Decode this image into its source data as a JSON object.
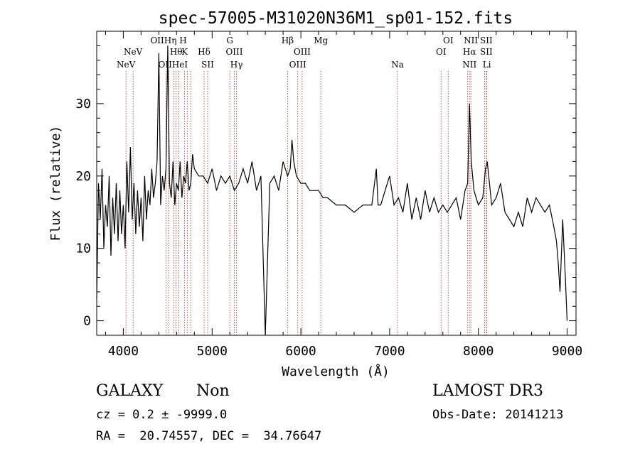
{
  "chart_data": {
    "type": "line",
    "title": "spec-57005-M31020N36M1_sp01-152.fits",
    "xlabel": "Wavelength (Å)",
    "ylabel": "Flux (relative)",
    "xlim": [
      3700,
      9100
    ],
    "ylim": [
      -2,
      40
    ],
    "x_ticks": [
      4000,
      5000,
      6000,
      7000,
      8000,
      9000
    ],
    "y_ticks": [
      0,
      10,
      20,
      30
    ],
    "series": [
      {
        "name": "spectrum",
        "x": [
          3700,
          3720,
          3740,
          3760,
          3780,
          3800,
          3820,
          3840,
          3860,
          3880,
          3900,
          3920,
          3940,
          3960,
          3980,
          4000,
          4020,
          4040,
          4060,
          4080,
          4100,
          4120,
          4140,
          4160,
          4180,
          4200,
          4220,
          4240,
          4260,
          4280,
          4300,
          4320,
          4340,
          4360,
          4380,
          4400,
          4420,
          4440,
          4460,
          4480,
          4500,
          4520,
          4540,
          4560,
          4580,
          4600,
          4620,
          4640,
          4660,
          4680,
          4700,
          4720,
          4740,
          4760,
          4780,
          4800,
          4850,
          4900,
          4950,
          5000,
          5050,
          5100,
          5150,
          5200,
          5250,
          5300,
          5350,
          5400,
          5450,
          5500,
          5550,
          5600,
          5650,
          5700,
          5750,
          5800,
          5850,
          5880,
          5900,
          5920,
          5950,
          6000,
          6050,
          6100,
          6150,
          6200,
          6250,
          6300,
          6400,
          6500,
          6600,
          6700,
          6800,
          6850,
          6870,
          6900,
          6950,
          7000,
          7050,
          7100,
          7150,
          7200,
          7250,
          7300,
          7350,
          7400,
          7450,
          7500,
          7550,
          7600,
          7650,
          7700,
          7750,
          7800,
          7850,
          7880,
          7900,
          7920,
          7950,
          8000,
          8050,
          8080,
          8100,
          8150,
          8200,
          8250,
          8300,
          8350,
          8400,
          8450,
          8500,
          8550,
          8600,
          8650,
          8700,
          8750,
          8800,
          8850,
          8880,
          8900,
          8920,
          8950,
          8980,
          9000
        ],
        "y": [
          3,
          19,
          14,
          21,
          10,
          16,
          13,
          20,
          9,
          17,
          12,
          19,
          11,
          18,
          12,
          16,
          10,
          22,
          15,
          24,
          14,
          19,
          12,
          18,
          13,
          17,
          11,
          20,
          14,
          18,
          16,
          21,
          17,
          19,
          22,
          37,
          16,
          20,
          18,
          21,
          38,
          19,
          17,
          22,
          16,
          19,
          18,
          22,
          17,
          20,
          19,
          22,
          18,
          19,
          23,
          21,
          20,
          20,
          19,
          21,
          18,
          20,
          19,
          20,
          18,
          19,
          21,
          19,
          22,
          18,
          20,
          -2,
          19,
          20,
          18,
          22,
          20,
          21,
          25,
          22,
          20,
          19,
          19,
          18,
          18,
          18,
          17,
          17,
          16,
          16,
          15,
          16,
          16,
          21,
          16,
          16,
          18,
          20,
          16,
          17,
          15,
          19,
          14,
          17,
          14,
          18,
          15,
          17,
          15,
          16,
          15,
          16,
          17,
          14,
          18,
          19,
          30,
          22,
          18,
          16,
          17,
          21,
          22,
          16,
          17,
          19,
          15,
          14,
          13,
          15,
          13,
          17,
          15,
          17,
          16,
          15,
          16,
          13,
          11,
          8,
          4,
          14,
          6,
          0
        ],
        "color": "#000000"
      }
    ],
    "lines": [
      {
        "wl": 4030,
        "label": "NeV"
      },
      {
        "wl": 4110,
        "label": "NeV"
      },
      {
        "wl": 4480,
        "label": "OII"
      },
      {
        "wl": 4510,
        "label": "OII"
      },
      {
        "wl": 4570,
        "label": "Hη"
      },
      {
        "wl": 4595,
        "label": "Hθ"
      },
      {
        "wl": 4625,
        "label": "He"
      },
      {
        "wl": 4690,
        "label": "K"
      },
      {
        "wl": 4720,
        "label": "HeI"
      },
      {
        "wl": 4760,
        "label": "H"
      },
      {
        "wl": 4910,
        "label": "Hδ"
      },
      {
        "wl": 4950,
        "label": "SII"
      },
      {
        "wl": 5200,
        "label": "G"
      },
      {
        "wl": 5250,
        "label": "OIII"
      },
      {
        "wl": 5275,
        "label": "Hγ"
      },
      {
        "wl": 5850,
        "label": "Hβ"
      },
      {
        "wl": 5965,
        "label": "OIII"
      },
      {
        "wl": 6015,
        "label": "OIII"
      },
      {
        "wl": 6225,
        "label": "Mg"
      },
      {
        "wl": 7090,
        "label": "Na"
      },
      {
        "wl": 7580,
        "label": "OI"
      },
      {
        "wl": 7660,
        "label": "OI"
      },
      {
        "wl": 7880,
        "label": "NII"
      },
      {
        "wl": 7900,
        "label": "Hα"
      },
      {
        "wl": 7915,
        "label": "NII"
      },
      {
        "wl": 8070,
        "label": "SII"
      },
      {
        "wl": 8090,
        "label": "SII"
      },
      {
        "wl": 8095,
        "label": "Li"
      }
    ],
    "line_label_rows": [
      {
        "row": 0,
        "items": [
          {
            "wl": 4510,
            "label": "OIIHη H"
          },
          {
            "wl": 5200,
            "label": "G"
          },
          {
            "wl": 5850,
            "label": "Hβ"
          },
          {
            "wl": 6225,
            "label": "Mg"
          },
          {
            "wl": 7660,
            "label": "OI"
          },
          {
            "wl": 7915,
            "label": "NII"
          },
          {
            "wl": 8090,
            "label": "SII"
          }
        ]
      },
      {
        "row": 1,
        "items": [
          {
            "wl": 4110,
            "label": "NeV"
          },
          {
            "wl": 4595,
            "label": "Hθ"
          },
          {
            "wl": 4690,
            "label": "K"
          },
          {
            "wl": 4910,
            "label": "Hδ"
          },
          {
            "wl": 5250,
            "label": "OIII"
          },
          {
            "wl": 6015,
            "label": "OIII"
          },
          {
            "wl": 7580,
            "label": "OI"
          },
          {
            "wl": 7900,
            "label": "Hα"
          },
          {
            "wl": 8090,
            "label": "SII"
          }
        ]
      },
      {
        "row": 2,
        "items": [
          {
            "wl": 4030,
            "label": "NeV"
          },
          {
            "wl": 4560,
            "label": "OIIHeI"
          },
          {
            "wl": 4950,
            "label": "SII"
          },
          {
            "wl": 5275,
            "label": "Hγ"
          },
          {
            "wl": 5965,
            "label": "OIII"
          },
          {
            "wl": 7090,
            "label": "Na"
          },
          {
            "wl": 7900,
            "label": "NII"
          },
          {
            "wl": 8095,
            "label": "Li"
          }
        ]
      }
    ]
  },
  "info": {
    "class": "GALAXY",
    "subclass": "Non",
    "survey": "LAMOST DR3",
    "cz": "cz = 0.2 ± -9999.0",
    "obs_date": "Obs-Date: 20141213",
    "coords": "RA =  20.74557, DEC =  34.76647"
  }
}
